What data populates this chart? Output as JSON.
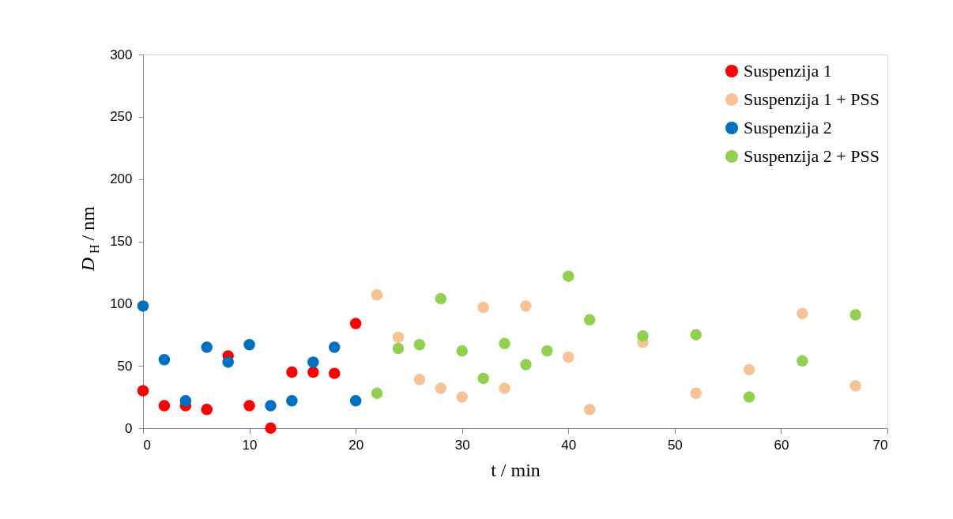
{
  "chart_data": {
    "type": "scatter",
    "xlabel": "t / min",
    "ylabel": "D$_{H}$ / nm",
    "xlim": [
      0,
      70
    ],
    "xticks": [
      0,
      10,
      20,
      30,
      40,
      50,
      60,
      70
    ],
    "ylim": [
      0,
      300
    ],
    "yticks": [
      0,
      50,
      100,
      150,
      200,
      250,
      300
    ],
    "grid": false,
    "legend": "top right",
    "marker": "circle",
    "series": [
      {
        "name": "Suspenzija 1",
        "color": "#ff0000",
        "x": [
          0,
          2,
          4,
          6,
          8,
          10,
          12,
          14,
          16,
          18,
          20
        ],
        "values": [
          30,
          18,
          18,
          15,
          58,
          18,
          0,
          45,
          45,
          44,
          84
        ]
      },
      {
        "name": "Suspenzija 1 + PSS",
        "color": "#f8c394",
        "x": [
          22,
          24,
          26,
          28,
          30,
          32,
          34,
          36,
          40,
          42,
          47,
          52,
          57,
          62,
          67
        ],
        "values": [
          107,
          73,
          39,
          32,
          25,
          97,
          32,
          98,
          57,
          15,
          69,
          28,
          47,
          92,
          34
        ]
      },
      {
        "name": "Suspenzija 2",
        "color": "#0070c0",
        "x": [
          0,
          2,
          4,
          6,
          8,
          10,
          12,
          14,
          16,
          18,
          20
        ],
        "values": [
          98,
          55,
          22,
          65,
          53,
          67,
          18,
          22,
          53,
          65,
          22
        ]
      },
      {
        "name": "Suspenzija 2 + PSS",
        "color": "#92d050",
        "x": [
          22,
          24,
          26,
          28,
          30,
          32,
          34,
          36,
          38,
          40,
          42,
          47,
          52,
          57,
          62,
          67
        ],
        "values": [
          28,
          64,
          67,
          104,
          62,
          40,
          68,
          51,
          62,
          122,
          87,
          74,
          75,
          25,
          54,
          91
        ]
      }
    ]
  }
}
